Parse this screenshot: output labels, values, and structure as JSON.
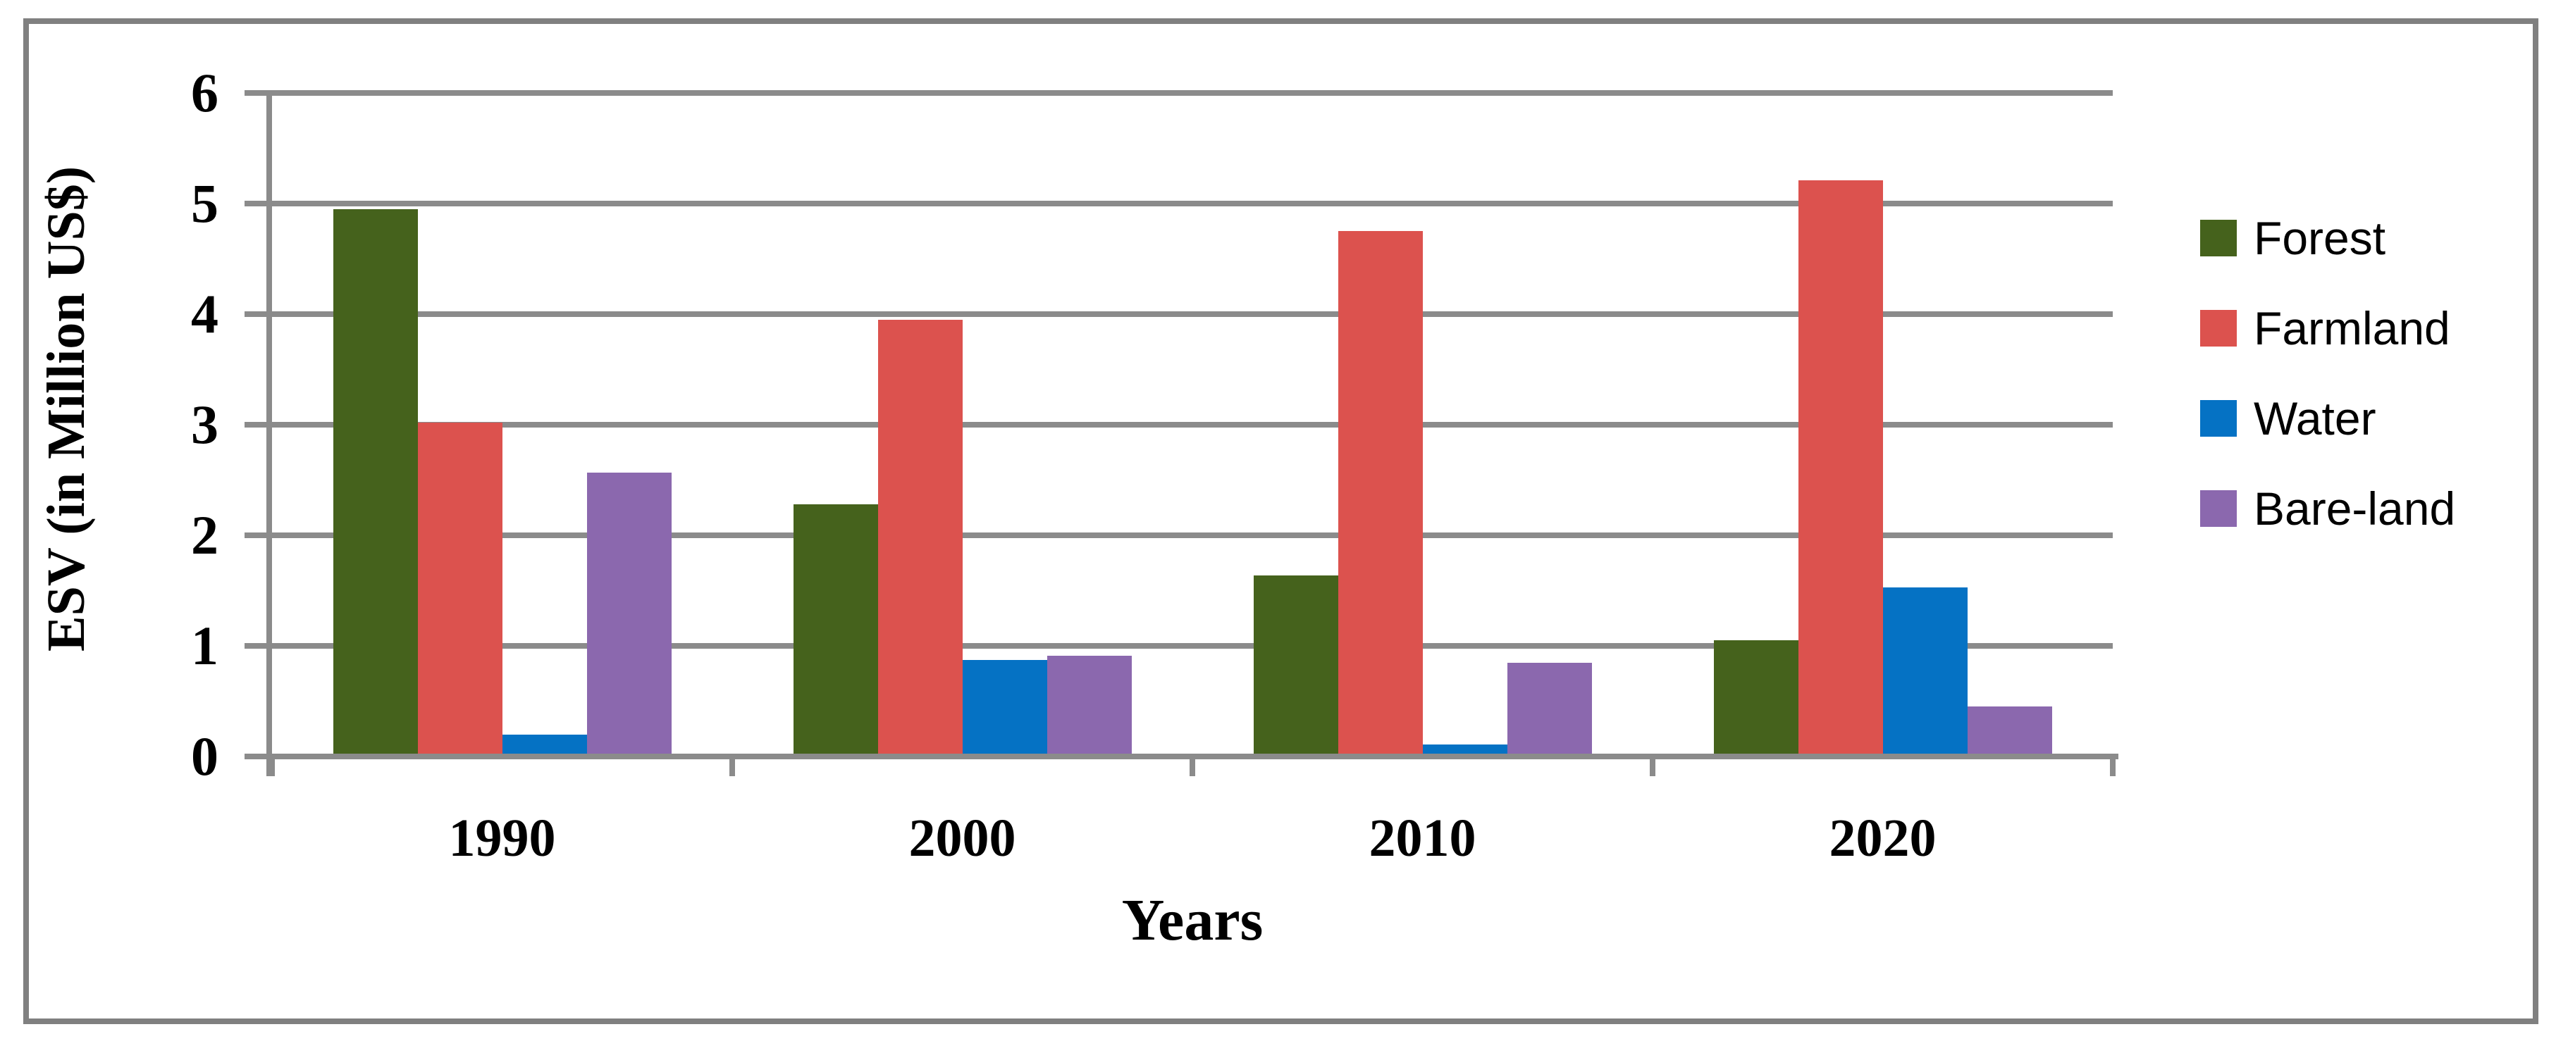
{
  "chart_data": {
    "type": "bar",
    "categories": [
      "1990",
      "2000",
      "2010",
      "2020"
    ],
    "series": [
      {
        "name": "Forest",
        "color": "#45621c",
        "values": [
          4.95,
          2.28,
          1.64,
          1.05
        ]
      },
      {
        "name": "Farmland",
        "color": "#dc524e",
        "values": [
          3.02,
          3.95,
          4.75,
          5.21
        ]
      },
      {
        "name": "Water",
        "color": "#0572c4",
        "values": [
          0.2,
          0.87,
          0.11,
          1.53
        ]
      },
      {
        "name": "Bare-land",
        "color": "#8b68ae",
        "values": [
          2.57,
          0.91,
          0.85,
          0.45
        ]
      }
    ],
    "xlabel": "Years",
    "ylabel": "ESV (in Million US$)",
    "ylim": [
      0,
      6
    ],
    "yticks": [
      0,
      1,
      2,
      3,
      4,
      5,
      6
    ],
    "grid": "horizontal",
    "legend_position": "right"
  },
  "figure": {
    "border_color": "#808080",
    "gridline_color": "#8b8b8b",
    "axis_color": "#8b8b8b",
    "text_color": "#000000",
    "background": "#ffffff"
  }
}
